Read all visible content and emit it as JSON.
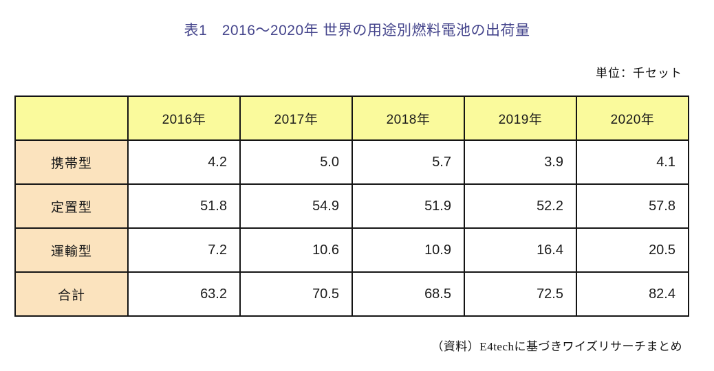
{
  "page": {
    "title": "表1　2016〜2020年 世界の用途別燃料電池の出荷量",
    "unit_label": "単位：千セット",
    "source_note": "（資料）E4techに基づきワイズリサーチまとめ"
  },
  "colors": {
    "title_text": "#45458C",
    "header_bg": "#FAFA9C",
    "row_label_bg": "#FBE3BE",
    "grid_border": "#141414",
    "body_bg": "#FFFFFF"
  },
  "chart_data": {
    "type": "table",
    "title": "表1　2016〜2020年 世界の用途別燃料電池の出荷量",
    "unit": "千セット",
    "columns": [
      "",
      "2016年",
      "2017年",
      "2018年",
      "2019年",
      "2020年"
    ],
    "rows": [
      {
        "label": "携帯型",
        "values": [
          4.2,
          5.0,
          5.7,
          3.9,
          4.1
        ]
      },
      {
        "label": "定置型",
        "values": [
          51.8,
          54.9,
          51.9,
          52.2,
          57.8
        ]
      },
      {
        "label": "運輸型",
        "values": [
          7.2,
          10.6,
          10.9,
          16.4,
          20.5
        ]
      },
      {
        "label": "合計",
        "values": [
          63.2,
          70.5,
          68.5,
          72.5,
          82.4
        ]
      }
    ],
    "value_decimals": 1,
    "source": "（資料）E4techに基づきワイズリサーチまとめ"
  }
}
